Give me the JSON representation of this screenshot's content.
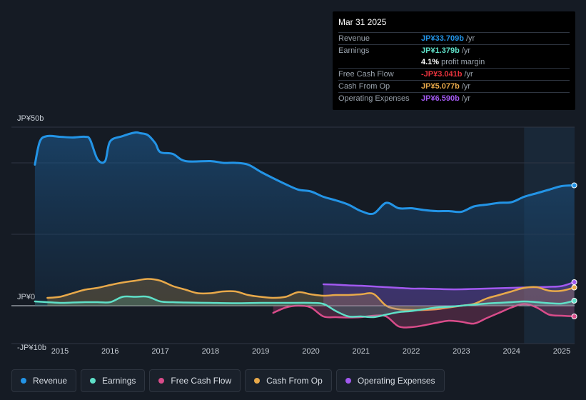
{
  "chart_data": {
    "type": "area",
    "x_range": [
      2014.5,
      2025.25
    ],
    "ylim": [
      -10,
      50
    ],
    "y_tick_labels": [
      {
        "value": 50,
        "label": "JP¥50b"
      },
      {
        "value": 0,
        "label": "JP¥0"
      },
      {
        "value": -10,
        "label": "-JP¥10b"
      }
    ],
    "x_ticks": [
      2015,
      2016,
      2017,
      2018,
      2019,
      2020,
      2021,
      2022,
      2023,
      2024,
      2025
    ],
    "forecast_shade_start": 2024.25,
    "series": [
      {
        "name": "Revenue",
        "color": "#2394e6",
        "fill": true,
        "x": [
          2014.5,
          2014.6,
          2014.75,
          2015.0,
          2015.25,
          2015.5,
          2015.6,
          2015.75,
          2015.9,
          2016.0,
          2016.25,
          2016.5,
          2016.6,
          2016.75,
          2016.9,
          2017.0,
          2017.25,
          2017.5,
          2018.0,
          2018.25,
          2018.5,
          2018.75,
          2019.0,
          2019.25,
          2019.5,
          2019.75,
          2020.0,
          2020.25,
          2020.5,
          2020.75,
          2021.0,
          2021.25,
          2021.5,
          2021.75,
          2022.0,
          2022.25,
          2022.5,
          2022.75,
          2023.0,
          2023.25,
          2023.5,
          2023.75,
          2024.0,
          2024.25,
          2024.5,
          2024.75,
          2025.0,
          2025.25
        ],
        "values": [
          39.5,
          46,
          47.5,
          47.3,
          47.1,
          47.3,
          46.5,
          41,
          40.5,
          46,
          47.5,
          48.5,
          48.3,
          47.8,
          45.5,
          43,
          42.5,
          40.5,
          40.5,
          40,
          40,
          39.5,
          37.5,
          35.7,
          34,
          32.5,
          32,
          30.5,
          29.5,
          28.3,
          26.5,
          25.8,
          28.8,
          27.3,
          27.3,
          26.8,
          26.5,
          26.5,
          26.3,
          27.8,
          28.3,
          28.8,
          29,
          30.5,
          31.5,
          32.5,
          33.5,
          33.7
        ]
      },
      {
        "name": "Earnings",
        "color": "#5fe0c8",
        "fill": true,
        "x": [
          2014.5,
          2014.75,
          2015.0,
          2015.25,
          2015.5,
          2015.75,
          2016.0,
          2016.25,
          2016.5,
          2016.75,
          2017.0,
          2017.25,
          2017.5,
          2018.0,
          2018.5,
          2019.0,
          2019.5,
          2020.0,
          2020.25,
          2020.5,
          2020.75,
          2021.0,
          2021.25,
          2021.5,
          2021.75,
          2022.0,
          2022.25,
          2022.5,
          2022.75,
          2023.0,
          2023.25,
          2023.5,
          2023.75,
          2024.0,
          2024.25,
          2024.5,
          2024.75,
          2025.0,
          2025.25
        ],
        "values": [
          1.2,
          1,
          0.8,
          0.9,
          1,
          1,
          1,
          2.5,
          2.5,
          2.5,
          1.2,
          1,
          0.9,
          0.8,
          0.7,
          0.8,
          0.8,
          0.8,
          0.5,
          -1.5,
          -3,
          -3,
          -3.2,
          -2.5,
          -1.8,
          -1.5,
          -1,
          -0.5,
          -0.3,
          0,
          0.3,
          0.6,
          0.8,
          1,
          1.2,
          1,
          0.7,
          0.6,
          1.4
        ]
      },
      {
        "name": "Free Cash Flow",
        "color": "#d94c8a",
        "fill": true,
        "x": [
          2019.25,
          2019.5,
          2019.75,
          2020.0,
          2020.25,
          2020.5,
          2020.75,
          2021.0,
          2021.25,
          2021.5,
          2021.75,
          2022.0,
          2022.25,
          2022.5,
          2022.75,
          2023.0,
          2023.25,
          2023.5,
          2023.75,
          2024.0,
          2024.25,
          2024.5,
          2024.75,
          2025.0,
          2025.25
        ],
        "values": [
          -2,
          -0.5,
          0,
          -0.5,
          -3,
          -3.2,
          -3.3,
          -3.2,
          -2.8,
          -3,
          -5.8,
          -6,
          -5.5,
          -4.8,
          -4.2,
          -4.5,
          -5,
          -3.5,
          -2,
          -0.5,
          0.5,
          -0.5,
          -2.5,
          -2.8,
          -3
        ]
      },
      {
        "name": "Cash From Op",
        "color": "#e8a94a",
        "fill": true,
        "x": [
          2014.75,
          2015.0,
          2015.25,
          2015.5,
          2015.75,
          2016.0,
          2016.25,
          2016.5,
          2016.75,
          2017.0,
          2017.25,
          2017.5,
          2017.75,
          2018.0,
          2018.25,
          2018.5,
          2018.75,
          2019.0,
          2019.25,
          2019.5,
          2019.75,
          2020.0,
          2020.25,
          2020.5,
          2020.75,
          2021.0,
          2021.25,
          2021.5,
          2021.75,
          2022.0,
          2022.25,
          2022.5,
          2022.75,
          2023.0,
          2023.25,
          2023.5,
          2023.75,
          2024.0,
          2024.25,
          2024.5,
          2024.75,
          2025.0,
          2025.25
        ],
        "values": [
          2.2,
          2.5,
          3.5,
          4.5,
          5,
          5.8,
          6.5,
          7,
          7.5,
          7,
          5.5,
          4.5,
          3.5,
          3.5,
          4,
          4,
          3,
          2.5,
          2.2,
          2.5,
          3.8,
          3.2,
          2.8,
          3,
          3,
          3.2,
          3.3,
          0,
          -1,
          -1.2,
          -1.2,
          -1,
          -0.5,
          0,
          0.5,
          2,
          3,
          4,
          5,
          5.2,
          4.2,
          4.2,
          5.1
        ]
      },
      {
        "name": "Operating Expenses",
        "color": "#a259f0",
        "fill": true,
        "x": [
          2020.25,
          2020.5,
          2020.75,
          2021.0,
          2021.25,
          2021.5,
          2021.75,
          2022.0,
          2022.25,
          2022.5,
          2022.75,
          2023.0,
          2023.25,
          2023.5,
          2023.75,
          2024.0,
          2024.25,
          2024.5,
          2024.75,
          2025.0,
          2025.25
        ],
        "values": [
          6,
          5.9,
          5.7,
          5.6,
          5.4,
          5.2,
          5,
          4.8,
          4.8,
          4.7,
          4.6,
          4.6,
          4.7,
          4.8,
          4.9,
          5,
          5.1,
          5.2,
          5.3,
          5.5,
          6.6
        ]
      }
    ]
  },
  "tooltip": {
    "date": "Mar 31 2025",
    "rows": [
      {
        "label": "Revenue",
        "value": "JP¥33.709b",
        "unit": "/yr",
        "color": "#2394e6"
      },
      {
        "label": "Earnings",
        "value": "JP¥1.379b",
        "unit": "/yr",
        "color": "#5fe0c8"
      },
      {
        "label": "",
        "value": "4.1%",
        "unit": "profit margin",
        "color": "#ffffff"
      },
      {
        "label": "Free Cash Flow",
        "value": "-JP¥3.041b",
        "unit": "/yr",
        "color": "#e8333d"
      },
      {
        "label": "Cash From Op",
        "value": "JP¥5.077b",
        "unit": "/yr",
        "color": "#e8a94a"
      },
      {
        "label": "Operating Expenses",
        "value": "JP¥6.590b",
        "unit": "/yr",
        "color": "#a259f0"
      }
    ]
  },
  "legend": [
    {
      "label": "Revenue",
      "color": "#2394e6"
    },
    {
      "label": "Earnings",
      "color": "#5fe0c8"
    },
    {
      "label": "Free Cash Flow",
      "color": "#d94c8a"
    },
    {
      "label": "Cash From Op",
      "color": "#e8a94a"
    },
    {
      "label": "Operating Expenses",
      "color": "#a259f0"
    }
  ]
}
